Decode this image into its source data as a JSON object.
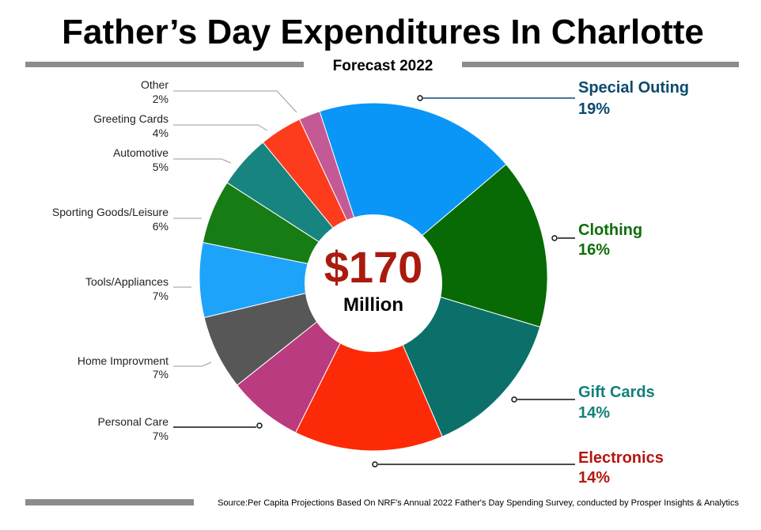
{
  "chart_data": {
    "type": "pie",
    "title": "Father’s Day Expenditures In Charlotte",
    "subtitle": "Forecast 2022",
    "center_value": "$170",
    "center_unit": "Million",
    "source": "Source:Per Capita Projections Based On NRF's Annual 2022 Father's Day Spending Survey, conducted by Prosper Insights & Analytics",
    "slices": [
      {
        "label": "Special Outing",
        "value_label": "19%",
        "value": 19,
        "color": "#0a96f7",
        "label_color": "#0c4a6e"
      },
      {
        "label": "Clothing",
        "value_label": "16%",
        "value": 16,
        "color": "#086a04",
        "label_color": "#0d6e0a"
      },
      {
        "label": "Gift Cards",
        "value_label": "14%",
        "value": 14,
        "color": "#0b706a",
        "label_color": "#12807a"
      },
      {
        "label": "Electronics",
        "value_label": "14%",
        "value": 14,
        "color": "#fd2a08",
        "label_color": "#b4160e"
      },
      {
        "label": "Personal Care",
        "value_label": "7%",
        "value": 7,
        "color": "#ba3b7f",
        "label_color": "#9b1f63"
      },
      {
        "label": "Home Improvment",
        "value_label": "7%",
        "value": 7,
        "color": "#575757",
        "label_color": "#222222"
      },
      {
        "label": "Tools/Appliances",
        "value_label": "7%",
        "value": 7,
        "color": "#1ea3fb",
        "label_color": "#222222"
      },
      {
        "label": "Sporting Goods/Leisure",
        "value_label": "6%",
        "value": 6,
        "color": "#187c14",
        "label_color": "#222222"
      },
      {
        "label": "Automotive",
        "value_label": "5%",
        "value": 5,
        "color": "#17847f",
        "label_color": "#222222"
      },
      {
        "label": "Greeting Cards",
        "value_label": "4%",
        "value": 4,
        "color": "#fd3c1d",
        "label_color": "#222222"
      },
      {
        "label": "Other",
        "value_label": "2%",
        "value": 2,
        "color": "#c45a95",
        "label_color": "#222222"
      }
    ],
    "colors": {
      "center_value": "#aa1b0f",
      "rule": "#8c8c8c"
    }
  }
}
